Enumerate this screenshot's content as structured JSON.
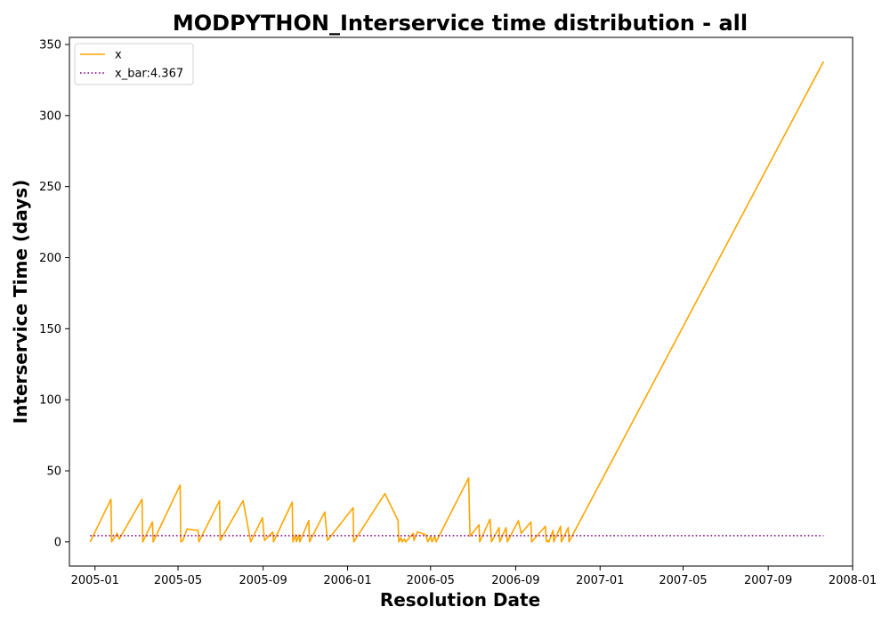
{
  "chart_data": {
    "type": "line",
    "title": "MODPYTHON_Interservice time distribution - all",
    "xlabel": "Resolution Date",
    "ylabel": "Interservice Time (days)",
    "xlim": [
      "2004-11-25",
      "2008-01-01"
    ],
    "ylim": [
      -17,
      355
    ],
    "x_ticks": [
      "2005-01",
      "2005-05",
      "2005-09",
      "2006-01",
      "2006-05",
      "2006-09",
      "2007-01",
      "2007-05",
      "2007-09",
      "2008-01"
    ],
    "y_ticks": [
      0,
      50,
      100,
      150,
      200,
      250,
      300,
      350
    ],
    "legend_position": "upper-left",
    "grid": false,
    "series": [
      {
        "name": "x",
        "color": "#ffa500",
        "style": "solid",
        "points": [
          [
            "2004-12-25",
            0
          ],
          [
            "2005-01-24",
            30
          ],
          [
            "2005-01-25",
            0
          ],
          [
            "2005-02-02",
            6
          ],
          [
            "2005-02-05",
            2
          ],
          [
            "2005-03-10",
            30
          ],
          [
            "2005-03-11",
            0
          ],
          [
            "2005-03-25",
            14
          ],
          [
            "2005-03-26",
            0
          ],
          [
            "2005-05-04",
            40
          ],
          [
            "2005-05-05",
            0
          ],
          [
            "2005-05-08",
            1
          ],
          [
            "2005-05-14",
            9
          ],
          [
            "2005-05-30",
            8
          ],
          [
            "2005-05-31",
            0
          ],
          [
            "2005-06-30",
            29
          ],
          [
            "2005-07-01",
            1
          ],
          [
            "2005-08-03",
            29
          ],
          [
            "2005-08-11",
            8
          ],
          [
            "2005-08-14",
            0
          ],
          [
            "2005-08-31",
            17
          ],
          [
            "2005-09-03",
            1
          ],
          [
            "2005-09-15",
            7
          ],
          [
            "2005-09-16",
            0
          ],
          [
            "2005-10-13",
            28
          ],
          [
            "2005-10-14",
            0
          ],
          [
            "2005-10-18",
            5
          ],
          [
            "2005-10-19",
            0
          ],
          [
            "2005-10-23",
            5
          ],
          [
            "2005-10-24",
            0
          ],
          [
            "2005-11-06",
            15
          ],
          [
            "2005-11-07",
            0
          ],
          [
            "2005-11-29",
            21
          ],
          [
            "2005-12-03",
            1
          ],
          [
            "2006-01-09",
            24
          ],
          [
            "2006-01-10",
            0
          ],
          [
            "2006-02-24",
            34
          ],
          [
            "2006-03-15",
            15
          ],
          [
            "2006-03-16",
            0
          ],
          [
            "2006-03-19",
            3
          ],
          [
            "2006-03-21",
            0
          ],
          [
            "2006-03-24",
            2
          ],
          [
            "2006-03-26",
            0
          ],
          [
            "2006-04-06",
            6
          ],
          [
            "2006-04-07",
            1
          ],
          [
            "2006-04-12",
            7
          ],
          [
            "2006-04-24",
            5
          ],
          [
            "2006-04-27",
            0
          ],
          [
            "2006-05-01",
            4
          ],
          [
            "2006-05-03",
            0
          ],
          [
            "2006-05-07",
            4
          ],
          [
            "2006-05-09",
            0
          ],
          [
            "2006-06-25",
            45
          ],
          [
            "2006-06-27",
            4
          ],
          [
            "2006-07-10",
            12
          ],
          [
            "2006-07-11",
            0
          ],
          [
            "2006-07-26",
            16
          ],
          [
            "2006-07-28",
            0
          ],
          [
            "2006-08-08",
            10
          ],
          [
            "2006-08-09",
            0
          ],
          [
            "2006-08-18",
            10
          ],
          [
            "2006-08-20",
            0
          ],
          [
            "2006-09-05",
            15
          ],
          [
            "2006-09-09",
            6
          ],
          [
            "2006-09-23",
            14
          ],
          [
            "2006-09-24",
            0
          ],
          [
            "2006-10-14",
            11
          ],
          [
            "2006-10-15",
            2
          ],
          [
            "2006-10-16",
            0
          ],
          [
            "2006-10-17",
            1
          ],
          [
            "2006-10-19",
            0
          ],
          [
            "2006-10-25",
            8
          ],
          [
            "2006-10-26",
            0
          ],
          [
            "2006-11-05",
            11
          ],
          [
            "2006-11-06",
            0
          ],
          [
            "2006-11-16",
            10
          ],
          [
            "2006-11-17",
            0
          ],
          [
            "2007-11-20",
            338
          ]
        ]
      },
      {
        "name": "x_bar:4.367",
        "color": "#800080",
        "style": "dotted",
        "points": [
          [
            "2004-12-25",
            4.367
          ],
          [
            "2007-11-20",
            4.367
          ]
        ]
      }
    ]
  }
}
